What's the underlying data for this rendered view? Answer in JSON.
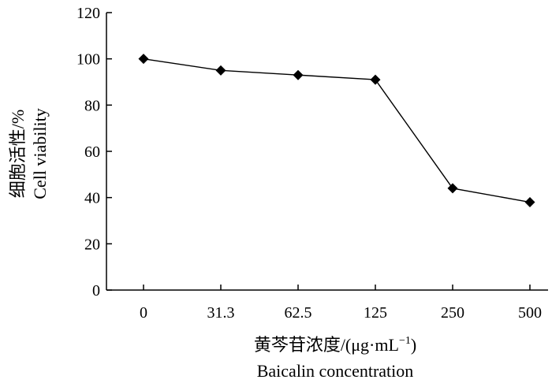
{
  "chart_data": {
    "type": "line",
    "categories": [
      "0",
      "31.3",
      "62.5",
      "125",
      "250",
      "500"
    ],
    "series": [
      {
        "values": [
          100,
          95,
          93,
          91,
          44,
          38
        ]
      }
    ],
    "xlabel_cn": "黄芩苷浓度/(μg·mL",
    "xlabel_sup": "−1",
    "xlabel_close": ")",
    "xlabel_en": "Baicalin concentration",
    "ylabel_cn": "细胞活性/%",
    "ylabel_en": "Cell viability",
    "ylim": [
      0,
      120
    ],
    "yticks": [
      "0",
      "20",
      "40",
      "60",
      "80",
      "100",
      "120"
    ],
    "grid": false,
    "marker": "diamond",
    "line_color": "#000000"
  }
}
